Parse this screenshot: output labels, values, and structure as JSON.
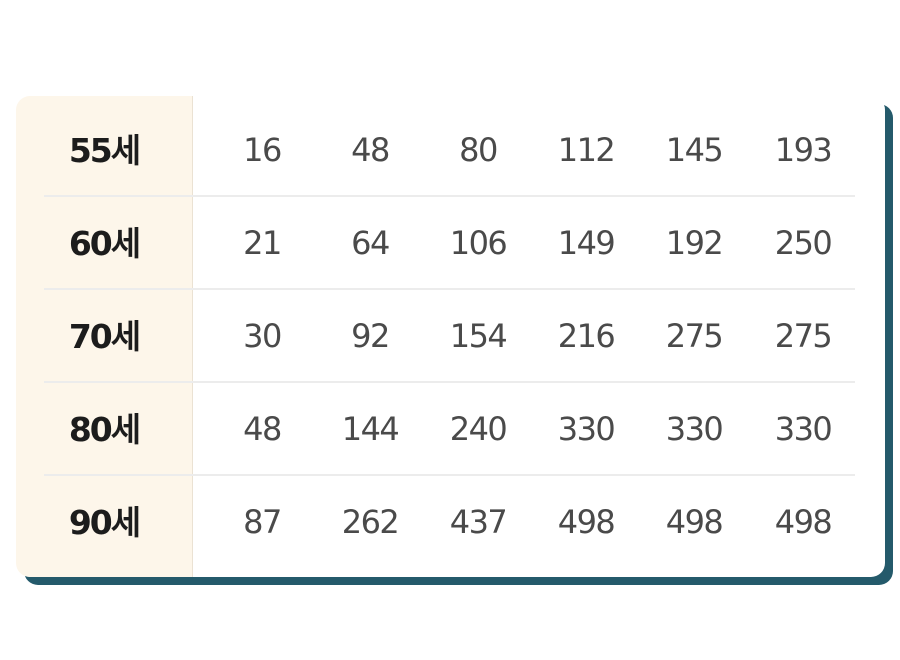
{
  "table": {
    "rows": [
      {
        "label": "55세",
        "values": [
          "16",
          "48",
          "80",
          "112",
          "145",
          "193"
        ]
      },
      {
        "label": "60세",
        "values": [
          "21",
          "64",
          "106",
          "149",
          "192",
          "250"
        ]
      },
      {
        "label": "70세",
        "values": [
          "30",
          "92",
          "154",
          "216",
          "275",
          "275"
        ]
      },
      {
        "label": "80세",
        "values": [
          "48",
          "144",
          "240",
          "330",
          "330",
          "330"
        ]
      },
      {
        "label": "90세",
        "values": [
          "87",
          "262",
          "437",
          "498",
          "498",
          "498"
        ]
      }
    ]
  },
  "colors": {
    "label_column_bg": "#fdf6ea",
    "card_shadow": "#245a6b",
    "value_text": "#4a4a4a",
    "label_text": "#1c1c1c"
  }
}
